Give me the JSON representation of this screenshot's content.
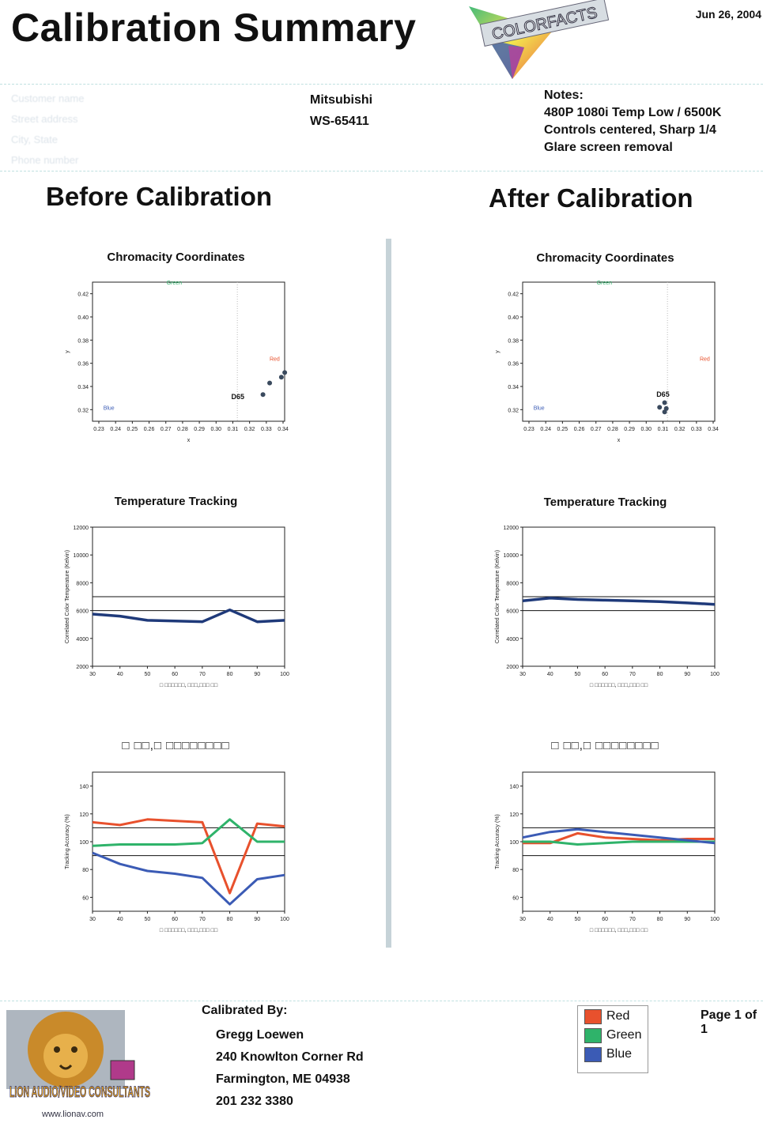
{
  "header": {
    "title": "Calibration Summary",
    "date": "Jun 26, 2004",
    "logo_text": "COLORFACTS"
  },
  "client": {
    "lines": [
      "Customer name",
      "Street address",
      "City, State",
      "Phone number"
    ]
  },
  "display": {
    "brand": "Mitsubishi",
    "model": "WS-65411"
  },
  "notes": {
    "heading": "Notes:",
    "lines": [
      "480P 1080i Temp Low / 6500K",
      "Controls centered, Sharp 1/4",
      "Glare screen removal"
    ]
  },
  "sections": {
    "before": "Before Calibration",
    "after": "After Calibration"
  },
  "footer": {
    "calibrated_by": "Calibrated By:",
    "name": "Gregg Loewen",
    "address1": "240 Knowlton Corner Rd",
    "address2": "Farmington, ME 04938",
    "phone": "201 232 3380",
    "page": "Page 1 of 1",
    "lion_logo_text": "LION AUDIO/VIDEO CONSULTANTS",
    "lion_url": "www.lionav.com"
  },
  "legend": [
    {
      "name": "Red",
      "color": "#e8512d"
    },
    {
      "name": "Green",
      "color": "#2fb36a"
    },
    {
      "name": "Blue",
      "color": "#3b5bb5"
    }
  ],
  "chart_data": [
    {
      "id": "before-chromaticity",
      "type": "scatter",
      "title": "Chromacity Coordinates",
      "xlabel": "x",
      "ylabel": "y",
      "xlim": [
        0.23,
        0.345
      ],
      "ylim": [
        0.31,
        0.43
      ],
      "xticks": [
        "0.23",
        "0.24",
        "0.25",
        "0.26",
        "0.27",
        "0.28",
        "0.29",
        "0.30",
        "0.31",
        "0.32",
        "0.33",
        "0.34"
      ],
      "yticks": [
        "0.32",
        "0.34",
        "0.36",
        "0.38",
        "0.40",
        "0.42"
      ],
      "annotations": [
        {
          "text": "Green",
          "x": 0.275,
          "y": 0.428,
          "color": "#2fb36a"
        },
        {
          "text": "Red",
          "x": 0.335,
          "y": 0.362,
          "color": "#e8512d"
        },
        {
          "text": "Blue",
          "x": 0.236,
          "y": 0.32,
          "color": "#3b5bb5"
        },
        {
          "text": "D65",
          "x": 0.313,
          "y": 0.329,
          "color": "#111111"
        }
      ],
      "reference_x": 0.3127,
      "points": [
        [
          0.328,
          0.333
        ],
        [
          0.332,
          0.343
        ],
        [
          0.339,
          0.348
        ],
        [
          0.341,
          0.352
        ]
      ]
    },
    {
      "id": "after-chromaticity",
      "type": "scatter",
      "title": "Chromacity Coordinates",
      "xlabel": "x",
      "ylabel": "y",
      "xlim": [
        0.23,
        0.345
      ],
      "ylim": [
        0.31,
        0.43
      ],
      "xticks": [
        "0.23",
        "0.24",
        "0.25",
        "0.26",
        "0.27",
        "0.28",
        "0.29",
        "0.30",
        "0.31",
        "0.32",
        "0.33",
        "0.34"
      ],
      "yticks": [
        "0.32",
        "0.34",
        "0.36",
        "0.38",
        "0.40",
        "0.42"
      ],
      "annotations": [
        {
          "text": "Green",
          "x": 0.275,
          "y": 0.428,
          "color": "#2fb36a"
        },
        {
          "text": "Red",
          "x": 0.335,
          "y": 0.362,
          "color": "#e8512d"
        },
        {
          "text": "Blue",
          "x": 0.236,
          "y": 0.32,
          "color": "#3b5bb5"
        },
        {
          "text": "D65",
          "x": 0.31,
          "y": 0.331,
          "color": "#111111"
        }
      ],
      "reference_x": 0.3127,
      "points": [
        [
          0.308,
          0.322
        ],
        [
          0.311,
          0.326
        ],
        [
          0.312,
          0.321
        ],
        [
          0.311,
          0.318
        ]
      ]
    },
    {
      "id": "before-temperature",
      "type": "line",
      "title": "Temperature Tracking",
      "xlabel": "□ □□□□□□, □□□,□□□ □□",
      "ylabel": "Correlated Color Temperature (Kelvin)",
      "xlim": [
        30,
        100
      ],
      "ylim": [
        2000,
        12000
      ],
      "xticks": [
        "30",
        "40",
        "50",
        "60",
        "70",
        "80",
        "90",
        "100"
      ],
      "yticks": [
        "2000",
        "4000",
        "6000",
        "8000",
        "10000",
        "12000"
      ],
      "reference_lines": [
        7000,
        6000
      ],
      "x": [
        30,
        40,
        50,
        60,
        70,
        80,
        90,
        100
      ],
      "series": [
        {
          "values": [
            5750,
            5600,
            5300,
            5250,
            5200,
            6050,
            5200,
            5300
          ],
          "color": "#1f3a7a"
        }
      ]
    },
    {
      "id": "after-temperature",
      "type": "line",
      "title": "Temperature Tracking",
      "xlabel": "□ □□□□□□, □□□,□□□ □□",
      "ylabel": "Correlated Color Temperature (Kelvin)",
      "xlim": [
        30,
        100
      ],
      "ylim": [
        2000,
        12000
      ],
      "xticks": [
        "30",
        "40",
        "50",
        "60",
        "70",
        "80",
        "90",
        "100"
      ],
      "yticks": [
        "2000",
        "4000",
        "6000",
        "8000",
        "10000",
        "12000"
      ],
      "reference_lines": [
        7000,
        6000
      ],
      "x": [
        30,
        40,
        50,
        60,
        70,
        80,
        90,
        100
      ],
      "series": [
        {
          "values": [
            6700,
            6900,
            6800,
            6750,
            6700,
            6650,
            6550,
            6450
          ],
          "color": "#1f3a7a"
        }
      ]
    },
    {
      "id": "before-rgb",
      "type": "line",
      "title": "□ □□,□ □□□□□□□□",
      "xlabel": "□ □□□□□□, □□□,□□□ □□",
      "ylabel": "Tracking Accuracy (%)",
      "xlim": [
        30,
        100
      ],
      "ylim": [
        50,
        150
      ],
      "xticks": [
        "30",
        "40",
        "50",
        "60",
        "70",
        "80",
        "90",
        "100"
      ],
      "yticks": [
        "60",
        "80",
        "100",
        "120",
        "140"
      ],
      "reference_lines": [
        110,
        90
      ],
      "x": [
        30,
        40,
        50,
        60,
        70,
        80,
        90,
        100
      ],
      "series": [
        {
          "name": "Red",
          "color": "#e8512d",
          "values": [
            114,
            112,
            116,
            115,
            114,
            63,
            113,
            111
          ]
        },
        {
          "name": "Green",
          "color": "#2fb36a",
          "values": [
            97,
            98,
            98,
            98,
            99,
            116,
            100,
            100
          ]
        },
        {
          "name": "Blue",
          "color": "#3b5bb5",
          "values": [
            92,
            84,
            79,
            77,
            74,
            55,
            73,
            76
          ]
        }
      ]
    },
    {
      "id": "after-rgb",
      "type": "line",
      "title": "□ □□,□ □□□□□□□□",
      "xlabel": "□ □□□□□□, □□□,□□□ □□",
      "ylabel": "Tracking Accuracy (%)",
      "xlim": [
        30,
        100
      ],
      "ylim": [
        50,
        150
      ],
      "xticks": [
        "30",
        "40",
        "50",
        "60",
        "70",
        "80",
        "90",
        "100"
      ],
      "yticks": [
        "60",
        "80",
        "100",
        "120",
        "140"
      ],
      "reference_lines": [
        110,
        90
      ],
      "x": [
        30,
        40,
        50,
        60,
        70,
        80,
        90,
        100
      ],
      "series": [
        {
          "name": "Red",
          "color": "#e8512d",
          "values": [
            99,
            99,
            106,
            103,
            102,
            101,
            102,
            102
          ]
        },
        {
          "name": "Green",
          "color": "#2fb36a",
          "values": [
            100,
            100,
            98,
            99,
            100,
            100,
            100,
            100
          ]
        },
        {
          "name": "Blue",
          "color": "#3b5bb5",
          "values": [
            103,
            107,
            109,
            107,
            105,
            103,
            101,
            99
          ]
        }
      ]
    }
  ]
}
